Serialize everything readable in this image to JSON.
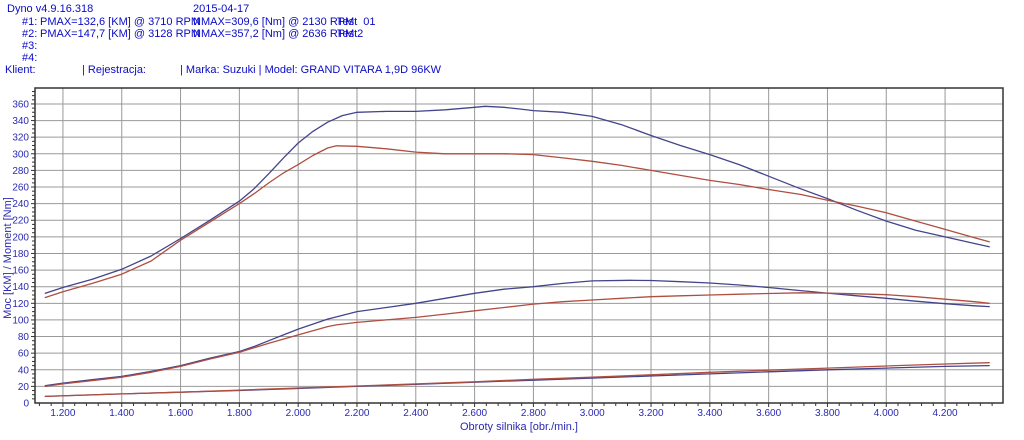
{
  "header": {
    "app_version": "Dyno v4.9.16.318",
    "date": "2015-04-17",
    "runs": [
      {
        "id": "#1:",
        "pmax": "PMAX=132,6 [KM] @ 3710 RPM",
        "nmax": "NMAX=309,6 [Nm] @ 2130 RPM",
        "test_name": "Test  01"
      },
      {
        "id": "#2:",
        "pmax": "PMAX=147,7 [KM] @ 3128 RPM",
        "nmax": "NMAX=357,2 [Nm] @ 2636 RPM",
        "test_name": "Test2"
      },
      {
        "id": "#3:",
        "pmax": "",
        "nmax": "",
        "test_name": ""
      },
      {
        "id": "#4:",
        "pmax": "",
        "nmax": "",
        "test_name": ""
      }
    ],
    "client_line": {
      "klient": "Klient:",
      "rejestracja": "| Rejestracja:",
      "marka_model": "| Marka: Suzuki | Model: GRAND VITARA 1,9D 96KW"
    }
  },
  "colors": {
    "text_blue": "#0a0ac8",
    "tick_text": "#2a2ab4",
    "axis_text": "#2a2ab4",
    "grid": "#999999",
    "border": "#333333",
    "curve_blue": "#44448c",
    "curve_red": "#b04e40",
    "background": "#ffffff"
  },
  "chart_data": {
    "type": "line",
    "title": "",
    "xlabel": "Obroty silnika [obr./min.]",
    "ylabel": "Moc [KM] / Moment [Nm]",
    "xlim": [
      1105,
      4397
    ],
    "ylim": [
      0,
      379.2
    ],
    "grid": true,
    "legend": "none",
    "x_ticks": [
      1200,
      1400,
      1600,
      1800,
      2000,
      2200,
      2400,
      2600,
      2800,
      3000,
      3200,
      3400,
      3600,
      3800,
      4000,
      4200
    ],
    "x_tick_labels": [
      "1.200",
      "1.400",
      "1.600",
      "1.800",
      "2.000",
      "2.200",
      "2.400",
      "2.600",
      "2.800",
      "3.000",
      "3.200",
      "3.400",
      "3.600",
      "3.800",
      "4.000",
      "4.200"
    ],
    "y_ticks": [
      0,
      20,
      40,
      60,
      80,
      100,
      120,
      140,
      160,
      180,
      200,
      220,
      240,
      260,
      280,
      300,
      320,
      340,
      360
    ],
    "y_tick_labels": [
      "0",
      "20",
      "40",
      "60",
      "80",
      "100",
      "120",
      "140",
      "160",
      "180",
      "200",
      "220",
      "240",
      "260",
      "280",
      "300",
      "320",
      "340",
      "360"
    ],
    "x_minor_step": 40,
    "y_minor_step": 5,
    "series": [
      {
        "name": "torque-test2",
        "run": "#2 Test2",
        "unit": "Nm",
        "color": "#44448c",
        "points": [
          [
            1140,
            132
          ],
          [
            1200,
            139
          ],
          [
            1300,
            149
          ],
          [
            1400,
            161
          ],
          [
            1500,
            177
          ],
          [
            1600,
            198
          ],
          [
            1700,
            220
          ],
          [
            1800,
            243
          ],
          [
            1850,
            258
          ],
          [
            1900,
            276
          ],
          [
            1950,
            295
          ],
          [
            2000,
            313
          ],
          [
            2050,
            327
          ],
          [
            2100,
            338
          ],
          [
            2150,
            346
          ],
          [
            2200,
            350
          ],
          [
            2300,
            351
          ],
          [
            2400,
            351
          ],
          [
            2500,
            353
          ],
          [
            2600,
            356
          ],
          [
            2636,
            357.2
          ],
          [
            2700,
            356
          ],
          [
            2750,
            354
          ],
          [
            2800,
            352
          ],
          [
            2900,
            350
          ],
          [
            3000,
            345
          ],
          [
            3100,
            335
          ],
          [
            3200,
            322
          ],
          [
            3300,
            310
          ],
          [
            3400,
            299
          ],
          [
            3500,
            287
          ],
          [
            3600,
            273
          ],
          [
            3700,
            259
          ],
          [
            3800,
            246
          ],
          [
            3900,
            232
          ],
          [
            4000,
            219
          ],
          [
            4100,
            208
          ],
          [
            4200,
            200
          ],
          [
            4300,
            192
          ],
          [
            4350,
            188
          ]
        ]
      },
      {
        "name": "torque-test1",
        "run": "#1 Test 01",
        "unit": "Nm",
        "color": "#b04e40",
        "points": [
          [
            1140,
            127
          ],
          [
            1200,
            134
          ],
          [
            1300,
            144
          ],
          [
            1400,
            155
          ],
          [
            1500,
            171
          ],
          [
            1600,
            196
          ],
          [
            1700,
            218
          ],
          [
            1800,
            240
          ],
          [
            1850,
            252
          ],
          [
            1900,
            265
          ],
          [
            1950,
            277
          ],
          [
            2000,
            287
          ],
          [
            2050,
            298
          ],
          [
            2100,
            307
          ],
          [
            2130,
            309.6
          ],
          [
            2200,
            309
          ],
          [
            2300,
            306
          ],
          [
            2400,
            302
          ],
          [
            2500,
            300
          ],
          [
            2600,
            300
          ],
          [
            2700,
            300
          ],
          [
            2800,
            299
          ],
          [
            2900,
            295
          ],
          [
            3000,
            291
          ],
          [
            3100,
            286
          ],
          [
            3200,
            280
          ],
          [
            3300,
            274
          ],
          [
            3400,
            268
          ],
          [
            3500,
            263
          ],
          [
            3600,
            257
          ],
          [
            3710,
            251
          ],
          [
            3800,
            244
          ],
          [
            3900,
            237
          ],
          [
            4000,
            229
          ],
          [
            4100,
            219
          ],
          [
            4200,
            209
          ],
          [
            4300,
            199
          ],
          [
            4350,
            194
          ]
        ]
      },
      {
        "name": "power-test2",
        "run": "#2 Test2",
        "unit": "KM",
        "color": "#44448c",
        "points": [
          [
            1140,
            21
          ],
          [
            1200,
            24
          ],
          [
            1300,
            28
          ],
          [
            1400,
            32
          ],
          [
            1500,
            38
          ],
          [
            1600,
            45
          ],
          [
            1700,
            54
          ],
          [
            1800,
            62
          ],
          [
            1850,
            68
          ],
          [
            1900,
            75
          ],
          [
            1950,
            82
          ],
          [
            2000,
            89
          ],
          [
            2100,
            101
          ],
          [
            2200,
            110
          ],
          [
            2300,
            115
          ],
          [
            2400,
            120
          ],
          [
            2500,
            126
          ],
          [
            2600,
            132
          ],
          [
            2700,
            137
          ],
          [
            2800,
            140
          ],
          [
            2900,
            144
          ],
          [
            3000,
            147
          ],
          [
            3128,
            147.7
          ],
          [
            3200,
            147.5
          ],
          [
            3300,
            146
          ],
          [
            3400,
            144.5
          ],
          [
            3500,
            142
          ],
          [
            3600,
            139
          ],
          [
            3700,
            135.5
          ],
          [
            3790,
            132.5
          ],
          [
            3900,
            129
          ],
          [
            4000,
            126
          ],
          [
            4100,
            122.5
          ],
          [
            4200,
            119.5
          ],
          [
            4300,
            117
          ],
          [
            4350,
            116
          ]
        ]
      },
      {
        "name": "power-test1",
        "run": "#1 Test 01",
        "unit": "KM",
        "color": "#b04e40",
        "points": [
          [
            1140,
            20
          ],
          [
            1200,
            23
          ],
          [
            1300,
            27
          ],
          [
            1400,
            31
          ],
          [
            1500,
            37
          ],
          [
            1600,
            44
          ],
          [
            1700,
            53
          ],
          [
            1800,
            61
          ],
          [
            1900,
            72
          ],
          [
            2000,
            82
          ],
          [
            2100,
            92
          ],
          [
            2130,
            94
          ],
          [
            2200,
            97
          ],
          [
            2300,
            100
          ],
          [
            2400,
            103
          ],
          [
            2500,
            107
          ],
          [
            2600,
            111
          ],
          [
            2700,
            115
          ],
          [
            2800,
            119
          ],
          [
            2900,
            122
          ],
          [
            3000,
            124
          ],
          [
            3100,
            126
          ],
          [
            3200,
            128
          ],
          [
            3300,
            129
          ],
          [
            3400,
            130
          ],
          [
            3500,
            131
          ],
          [
            3600,
            131.8
          ],
          [
            3710,
            132.6
          ],
          [
            3800,
            132.3
          ],
          [
            3900,
            131.5
          ],
          [
            4000,
            130.4
          ],
          [
            4100,
            128
          ],
          [
            4200,
            125
          ],
          [
            4300,
            122
          ],
          [
            4350,
            120
          ]
        ]
      },
      {
        "name": "loss-test2",
        "run": "#2 Test2",
        "unit": "KM",
        "color": "#44448c",
        "points": [
          [
            1140,
            8
          ],
          [
            1400,
            11
          ],
          [
            1600,
            13
          ],
          [
            1800,
            15
          ],
          [
            2000,
            17.5
          ],
          [
            2200,
            20
          ],
          [
            2400,
            22.5
          ],
          [
            2600,
            25
          ],
          [
            2800,
            27.5
          ],
          [
            3000,
            30
          ],
          [
            3200,
            32.5
          ],
          [
            3400,
            35
          ],
          [
            3600,
            37.5
          ],
          [
            3800,
            40
          ],
          [
            4000,
            42
          ],
          [
            4200,
            44
          ],
          [
            4350,
            45
          ]
        ]
      },
      {
        "name": "loss-test1",
        "run": "#1 Test 01",
        "unit": "KM",
        "color": "#b04e40",
        "points": [
          [
            1140,
            8
          ],
          [
            1400,
            11
          ],
          [
            1600,
            13
          ],
          [
            1800,
            15.5
          ],
          [
            2000,
            18
          ],
          [
            2200,
            20.5
          ],
          [
            2400,
            23
          ],
          [
            2600,
            25.5
          ],
          [
            2800,
            28.5
          ],
          [
            3000,
            31
          ],
          [
            3200,
            34
          ],
          [
            3400,
            37
          ],
          [
            3600,
            39.5
          ],
          [
            3800,
            42
          ],
          [
            4000,
            44.5
          ],
          [
            4200,
            47
          ],
          [
            4350,
            48.5
          ]
        ]
      }
    ]
  }
}
